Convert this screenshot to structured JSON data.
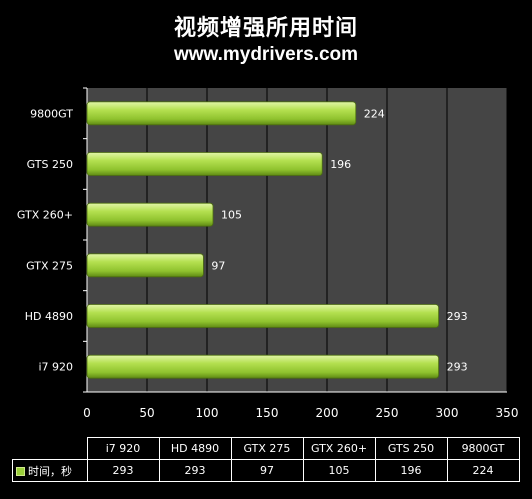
{
  "title": "视频增强所用时间",
  "subtitle": "www.mydrivers.com",
  "chart_data": {
    "type": "bar",
    "orientation": "horizontal",
    "categories": [
      "9800GT",
      "GTS 250",
      "GTX 260+",
      "GTX 275",
      "HD 4890",
      "i7 920"
    ],
    "series": [
      {
        "name": "时间，秒",
        "values": [
          224,
          196,
          105,
          97,
          293,
          293
        ]
      }
    ],
    "xlim": [
      0,
      350
    ],
    "xticks": [
      0,
      50,
      100,
      150,
      200,
      250,
      300,
      350
    ],
    "grid": true,
    "colors": {
      "bar": "#9bd03a",
      "plot_bg": "#454545",
      "grid": "#000000"
    }
  },
  "table": {
    "columns": [
      "i7 920",
      "HD 4890",
      "GTX 275",
      "GTX 260+",
      "GTS 250",
      "9800GT"
    ],
    "series_label": "时间，秒",
    "values": [
      "293",
      "293",
      "97",
      "105",
      "196",
      "224"
    ]
  }
}
